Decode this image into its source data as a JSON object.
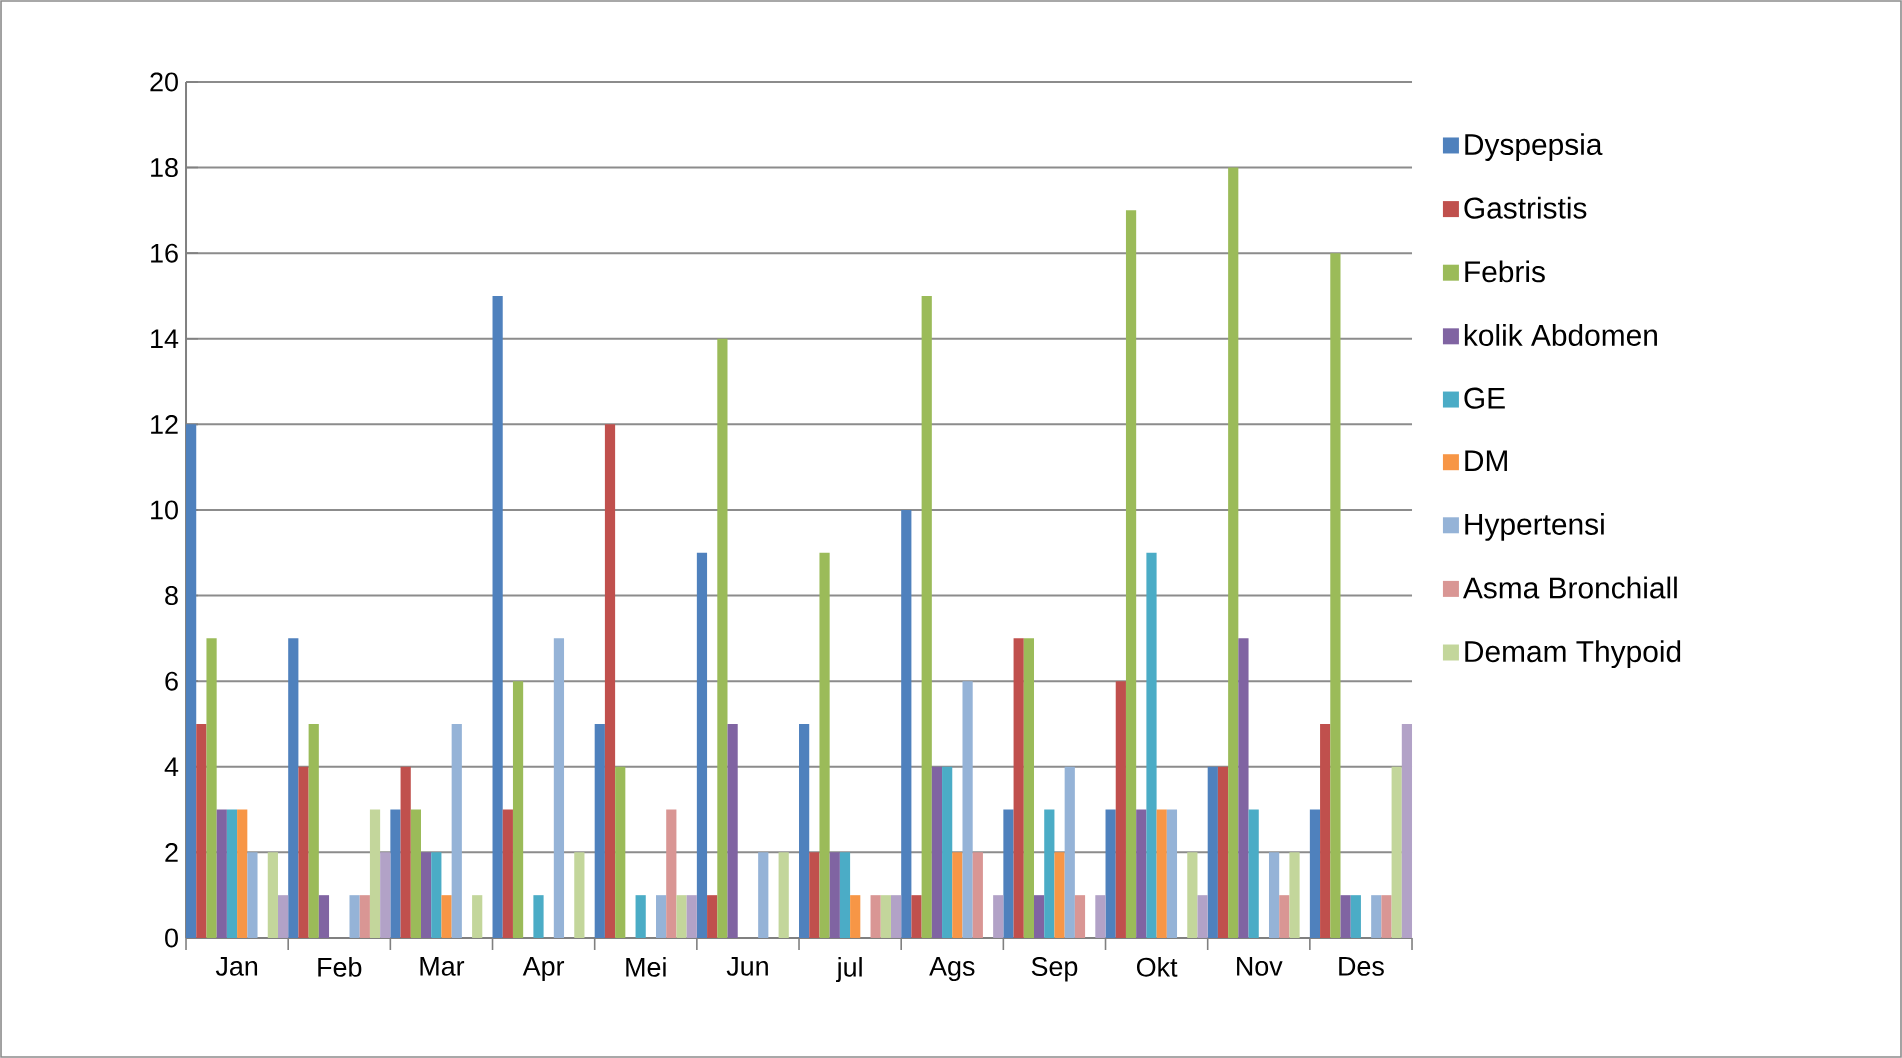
{
  "chart_data": {
    "type": "bar",
    "categories": [
      "Jan",
      "Feb",
      "Mar",
      "Apr",
      "Mei",
      "Jun",
      "jul",
      "Ags",
      "Sep",
      "Okt",
      "Nov",
      "Des"
    ],
    "series": [
      {
        "name": "Dyspepsia",
        "color": "#4f81bd",
        "values": [
          12,
          7,
          3,
          15,
          5,
          9,
          5,
          10,
          3,
          3,
          4,
          3
        ]
      },
      {
        "name": "Gastristis",
        "color": "#c0504d",
        "values": [
          5,
          4,
          4,
          3,
          12,
          1,
          2,
          1,
          7,
          6,
          4,
          5
        ]
      },
      {
        "name": "Febris",
        "color": "#9bbb59",
        "values": [
          7,
          5,
          3,
          6,
          4,
          14,
          9,
          15,
          7,
          17,
          18,
          16
        ]
      },
      {
        "name": "kolik Abdomen",
        "color": "#8064a2",
        "values": [
          3,
          1,
          2,
          0,
          0,
          5,
          2,
          4,
          1,
          3,
          7,
          1
        ]
      },
      {
        "name": "GE",
        "color": "#4bacc6",
        "values": [
          3,
          0,
          2,
          1,
          1,
          0,
          2,
          4,
          3,
          9,
          3,
          1
        ]
      },
      {
        "name": "DM",
        "color": "#f79646",
        "values": [
          3,
          0,
          1,
          0,
          0,
          0,
          1,
          2,
          2,
          3,
          0,
          0
        ]
      },
      {
        "name": "Hypertensi",
        "color": "#95b3d7",
        "values": [
          2,
          1,
          5,
          7,
          1,
          2,
          0,
          6,
          4,
          3,
          2,
          1
        ]
      },
      {
        "name": "Asma Bronchiall",
        "color": "#d99694",
        "values": [
          0,
          1,
          0,
          0,
          3,
          0,
          1,
          2,
          1,
          0,
          1,
          1
        ]
      },
      {
        "name": "Demam Thypoid",
        "color": "#c3d69b",
        "values": [
          2,
          3,
          1,
          2,
          1,
          2,
          1,
          0,
          0,
          2,
          2,
          4
        ]
      },
      {
        "color": "#b2a2c7",
        "values": [
          1,
          2,
          0,
          0,
          1,
          0,
          1,
          1,
          1,
          1,
          0,
          5
        ]
      }
    ],
    "ylim": [
      0,
      20
    ],
    "yticks": [
      0,
      2,
      4,
      6,
      8,
      10,
      12,
      14,
      16,
      18,
      20
    ],
    "grid": "y",
    "legend": "right"
  }
}
